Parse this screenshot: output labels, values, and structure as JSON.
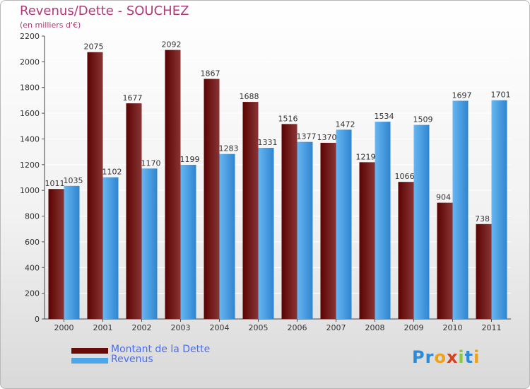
{
  "title": "Revenus/Dette - SOUCHEZ",
  "subtitle": "(en milliers d'€)",
  "colors": {
    "debt_dark": "#5a0303",
    "debt_light": "#8a3535",
    "rev_dark": "#2f85cf",
    "rev_light": "#67b6f2",
    "title": "#b03a78",
    "legend_text": "#4a6cf0"
  },
  "logo": {
    "letters": [
      "P",
      "r",
      "o",
      "x",
      "i",
      "t",
      "i"
    ],
    "colors": [
      "#2d8ad8",
      "#2d8ad8",
      "#f0a11a",
      "#d4421f",
      "#8cc63f",
      "#2d8ad8",
      "#f0a11a"
    ]
  },
  "legend": [
    {
      "label": "Montant de la Dette",
      "color": "#6a0b0b"
    },
    {
      "label": "Revenus",
      "color": "#4ea6ea"
    }
  ],
  "chart_data": {
    "type": "bar",
    "categories": [
      "2000",
      "2001",
      "2002",
      "2003",
      "2004",
      "2005",
      "2006",
      "2007",
      "2008",
      "2009",
      "2010",
      "2011"
    ],
    "series": [
      {
        "name": "Montant de la Dette",
        "values": [
          1011,
          2075,
          1677,
          2092,
          1867,
          1688,
          1516,
          1370,
          1219,
          1066,
          904,
          738
        ]
      },
      {
        "name": "Revenus",
        "values": [
          1035,
          1102,
          1170,
          1199,
          1283,
          1331,
          1377,
          1472,
          1534,
          1509,
          1697,
          1701
        ]
      }
    ],
    "yticks": [
      0,
      200,
      400,
      600,
      800,
      1000,
      1200,
      1400,
      1600,
      1800,
      2000,
      2200
    ],
    "ylim": [
      0,
      2200
    ],
    "grid": true
  }
}
